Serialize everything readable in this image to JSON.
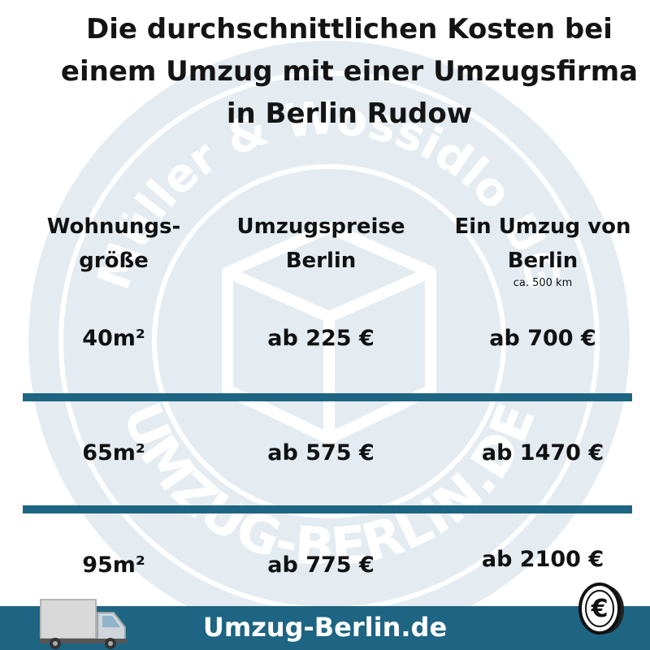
{
  "title_lines": [
    "Die durchschnittlichen Kosten bei",
    "einem Umzug mit einer Umzugsfirma",
    "in Berlin Rudow"
  ],
  "watermark": {
    "top_text": "Müller & Wossidlo UG",
    "bottom_text": "UMZUG-BERLIN.DE"
  },
  "table": {
    "headers": [
      {
        "lines": [
          "Wohnungs-",
          "größe"
        ]
      },
      {
        "lines": [
          "Umzugspreise",
          "Berlin"
        ]
      },
      {
        "lines": [
          "Ein Umzug von",
          "Berlin"
        ],
        "note": "ca. 500 km"
      }
    ],
    "rows": [
      {
        "size": "40m²",
        "price_berlin": "ab 225 €",
        "price_500km": "ab 700 €"
      },
      {
        "size": "65m²",
        "price_berlin": "ab 575 €",
        "price_500km": "ab 1470 €"
      },
      {
        "size": "95m²",
        "price_berlin": "ab 775 €",
        "price_500km": "ab 2100 €"
      }
    ]
  },
  "footer": {
    "text": "Umzug-Berlin.de"
  },
  "colors": {
    "accent": "#1e6483",
    "watermark": "#e4ecf2"
  },
  "icons": {
    "truck": "moving-truck-icon",
    "coin": "euro-coin-icon"
  }
}
